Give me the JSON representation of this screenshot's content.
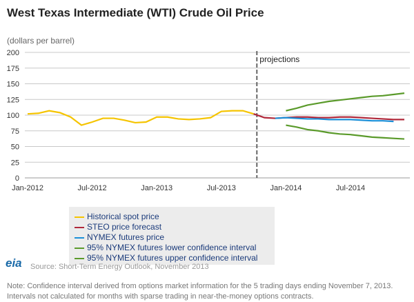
{
  "title": "West Texas Intermediate (WTI) Crude Oil Price",
  "chart_data": {
    "type": "line",
    "title": "West Texas Intermediate (WTI) Crude Oil Price",
    "ylabel": "(dollars per barrel)",
    "ylim": [
      0,
      200
    ],
    "yticks": [
      0,
      25,
      50,
      75,
      100,
      125,
      150,
      175,
      200
    ],
    "xticks": [
      "Jan-2012",
      "Jul-2012",
      "Jan-2013",
      "Jul-2013",
      "Jan-2014",
      "Jul-2014"
    ],
    "x_start": "Jan-2012",
    "projection_label": "projections",
    "projection_start_month_index": 21.3,
    "series": [
      {
        "name": "Historical spot price",
        "color": "#f5c400",
        "start": 0,
        "values": [
          102,
          103,
          107,
          104,
          97,
          84,
          89,
          95,
          95,
          92,
          88,
          89,
          97,
          97,
          94,
          93,
          94,
          96,
          106,
          107,
          107,
          102
        ]
      },
      {
        "name": "STEO price forecast",
        "color": "#b0283a",
        "start": 21,
        "values": [
          102,
          96,
          95,
          96,
          97,
          97,
          96,
          96,
          97,
          97,
          96,
          95,
          94,
          93,
          93
        ]
      },
      {
        "name": "NYMEX futures price",
        "color": "#1a8fd8",
        "start": 23,
        "values": [
          95,
          96,
          95,
          94,
          94,
          93,
          93,
          93,
          92,
          91,
          91,
          90
        ]
      },
      {
        "name": "95% NYMEX futures lower confidence interval",
        "color": "#5a9a2a",
        "start": 24,
        "values": [
          84,
          81,
          77,
          75,
          72,
          70,
          69,
          67,
          65,
          64,
          63,
          62
        ]
      },
      {
        "name": "95% NYMEX futures upper confidence interval",
        "color": "#5a9a2a",
        "start": 24,
        "values": [
          107,
          111,
          116,
          119,
          122,
          124,
          126,
          128,
          130,
          131,
          133,
          135
        ]
      }
    ]
  },
  "source": "Source: Short-Term Energy Outlook, November 2013",
  "logo": "eia",
  "note_line1": "Note: Confidence interval derived from options market information for the 5 trading days ending November 7, 2013.",
  "note_line2": "Intervals not calculated for months with sparse trading in near-the-money options contracts."
}
